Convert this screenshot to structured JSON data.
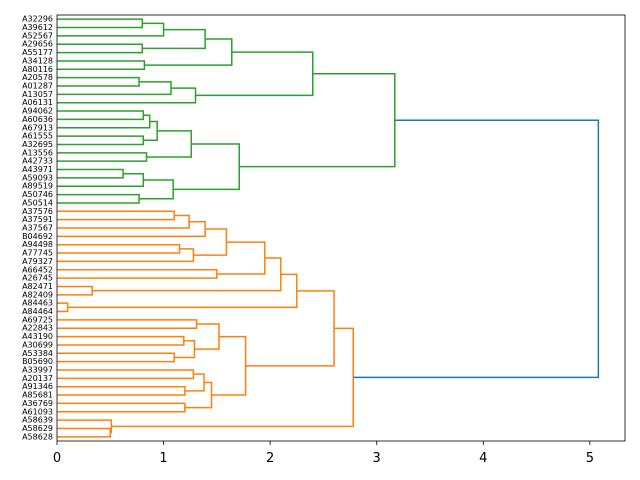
{
  "chart_data": {
    "type": "dendrogram",
    "orientation": "left",
    "xlim": [
      0,
      5.33
    ],
    "xticks": [
      0,
      1,
      2,
      3,
      4,
      5
    ],
    "leaves": [
      "A32296",
      "A39612",
      "A52567",
      "A29656",
      "A55177",
      "A34128",
      "A80116",
      "A20578",
      "A01287",
      "A13057",
      "A06131",
      "A94062",
      "A60636",
      "A67913",
      "A61555",
      "A32695",
      "A13556",
      "A42733",
      "A43971",
      "A59093",
      "A89519",
      "A50746",
      "A50514",
      "A37576",
      "A37591",
      "A37567",
      "B04692",
      "A94498",
      "A77745",
      "A79327",
      "A66452",
      "A26745",
      "A82471",
      "A82409",
      "A84463",
      "A84464",
      "A69725",
      "A22843",
      "A43190",
      "A30699",
      "A53384",
      "B05690",
      "A33997",
      "A20137",
      "A91346",
      "A85681",
      "A36769",
      "A61093",
      "A58639",
      "A58629",
      "A58628"
    ],
    "colors": {
      "green": "#2ca02c",
      "orange": "#ff7f0e",
      "blue": "#1f77b4"
    },
    "links": [
      {
        "a": "L0",
        "b": "L1",
        "h": 0.8,
        "c": "green"
      },
      {
        "a": "M0",
        "b": "L2",
        "h": 1.0,
        "c": "green"
      },
      {
        "a": "L3",
        "b": "L4",
        "h": 0.8,
        "c": "green"
      },
      {
        "a": "L5",
        "b": "L6",
        "h": 0.82,
        "c": "green"
      },
      {
        "a": "M1",
        "b": "M2",
        "h": 1.39,
        "c": "green"
      },
      {
        "a": "M3",
        "b": "M4",
        "h": 1.64,
        "c": "green"
      },
      {
        "a": "L7",
        "b": "L8",
        "h": 0.77,
        "c": "green"
      },
      {
        "a": "M6",
        "b": "L9",
        "h": 1.07,
        "c": "green"
      },
      {
        "a": "M7",
        "b": "L10",
        "h": 1.3,
        "c": "green"
      },
      {
        "a": "M5",
        "b": "M8",
        "h": 2.4,
        "c": "green"
      },
      {
        "a": "L11",
        "b": "L12",
        "h": 0.81,
        "c": "green"
      },
      {
        "a": "M10",
        "b": "L13",
        "h": 0.87,
        "c": "green"
      },
      {
        "a": "L14",
        "b": "L15",
        "h": 0.81,
        "c": "green"
      },
      {
        "a": "M11",
        "b": "M12",
        "h": 0.94,
        "c": "green"
      },
      {
        "a": "L16",
        "b": "L17",
        "h": 0.84,
        "c": "green"
      },
      {
        "a": "M13",
        "b": "M14",
        "h": 1.26,
        "c": "green"
      },
      {
        "a": "L18",
        "b": "L19",
        "h": 0.62,
        "c": "green"
      },
      {
        "a": "M16",
        "b": "L20",
        "h": 0.81,
        "c": "green"
      },
      {
        "a": "L21",
        "b": "L22",
        "h": 0.77,
        "c": "green"
      },
      {
        "a": "M17",
        "b": "M18",
        "h": 1.09,
        "c": "green"
      },
      {
        "a": "M15",
        "b": "M19",
        "h": 1.71,
        "c": "green"
      },
      {
        "a": "M9",
        "b": "M20",
        "h": 3.17,
        "c": "green"
      },
      {
        "a": "L23",
        "b": "L24",
        "h": 1.1,
        "c": "orange"
      },
      {
        "a": "M22",
        "b": "L25",
        "h": 1.24,
        "c": "orange"
      },
      {
        "a": "M23",
        "b": "L26",
        "h": 1.39,
        "c": "orange"
      },
      {
        "a": "L27",
        "b": "L28",
        "h": 1.15,
        "c": "orange"
      },
      {
        "a": "M25",
        "b": "L29",
        "h": 1.28,
        "c": "orange"
      },
      {
        "a": "M24",
        "b": "M26",
        "h": 1.59,
        "c": "orange"
      },
      {
        "a": "L30",
        "b": "L31",
        "h": 1.5,
        "c": "orange"
      },
      {
        "a": "M27",
        "b": "M28",
        "h": 1.95,
        "c": "orange"
      },
      {
        "a": "L32",
        "b": "L33",
        "h": 0.33,
        "c": "orange"
      },
      {
        "a": "M29",
        "b": "M30",
        "h": 2.1,
        "c": "orange"
      },
      {
        "a": "L34",
        "b": "L35",
        "h": 0.1,
        "c": "orange"
      },
      {
        "a": "M31",
        "b": "M32",
        "h": 2.25,
        "c": "orange"
      },
      {
        "a": "L36",
        "b": "L37",
        "h": 1.31,
        "c": "orange"
      },
      {
        "a": "L38",
        "b": "L39",
        "h": 1.19,
        "c": "orange"
      },
      {
        "a": "L40",
        "b": "L41",
        "h": 1.1,
        "c": "orange"
      },
      {
        "a": "M35",
        "b": "M36",
        "h": 1.29,
        "c": "orange"
      },
      {
        "a": "M34",
        "b": "M37",
        "h": 1.52,
        "c": "orange"
      },
      {
        "a": "L42",
        "b": "L43",
        "h": 1.28,
        "c": "orange"
      },
      {
        "a": "L44",
        "b": "L45",
        "h": 1.2,
        "c": "orange"
      },
      {
        "a": "M39",
        "b": "M40",
        "h": 1.38,
        "c": "orange"
      },
      {
        "a": "L46",
        "b": "L47",
        "h": 1.2,
        "c": "orange"
      },
      {
        "a": "M41",
        "b": "M42",
        "h": 1.45,
        "c": "orange"
      },
      {
        "a": "M38",
        "b": "M43",
        "h": 1.77,
        "c": "orange"
      },
      {
        "a": "M33",
        "b": "M44",
        "h": 2.6,
        "c": "orange"
      },
      {
        "a": "L49",
        "b": "L50",
        "h": 0.5,
        "c": "orange"
      },
      {
        "a": "L48",
        "b": "M46",
        "h": 0.51,
        "c": "orange"
      },
      {
        "a": "M45",
        "b": "M47",
        "h": 2.78,
        "c": "orange"
      },
      {
        "a": "M21",
        "b": "M48",
        "h": 5.08,
        "c": "blue"
      }
    ]
  }
}
